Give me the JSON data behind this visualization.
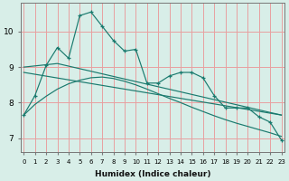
{
  "xlabel": "Humidex (Indice chaleur)",
  "bg_color": "#d8eee8",
  "grid_color": "#e8a0a0",
  "line_color": "#1a7a6e",
  "x_ticks": [
    0,
    1,
    2,
    3,
    4,
    5,
    6,
    7,
    8,
    9,
    10,
    11,
    12,
    13,
    14,
    15,
    16,
    17,
    18,
    19,
    20,
    21,
    22,
    23
  ],
  "y_ticks": [
    7,
    8,
    9,
    10
  ],
  "ylim": [
    6.6,
    10.8
  ],
  "xlim": [
    -0.3,
    23.3
  ],
  "main_x": [
    0,
    1,
    2,
    3,
    4,
    5,
    6,
    7,
    8,
    9,
    10,
    11,
    12,
    13,
    14,
    15,
    16,
    17,
    18,
    19,
    20,
    21,
    22,
    23
  ],
  "main_y": [
    7.65,
    8.2,
    9.05,
    9.55,
    9.25,
    10.45,
    10.55,
    10.15,
    9.75,
    9.45,
    9.5,
    8.55,
    8.55,
    8.75,
    8.85,
    8.85,
    8.7,
    8.2,
    7.85,
    7.85,
    7.85,
    7.6,
    7.45,
    6.95
  ],
  "line2_x": [
    0,
    3,
    23
  ],
  "line2_y": [
    9.0,
    9.1,
    7.65
  ],
  "line3_x": [
    0,
    23
  ],
  "line3_y": [
    8.85,
    7.65
  ],
  "smooth_x": [
    0,
    1,
    2,
    3,
    4,
    5,
    6,
    7,
    8,
    9,
    10,
    11,
    12,
    13,
    14,
    15,
    16,
    17,
    18,
    19,
    20,
    21,
    22,
    23
  ],
  "smooth_y": [
    7.65,
    7.95,
    8.18,
    8.38,
    8.53,
    8.63,
    8.7,
    8.72,
    8.68,
    8.6,
    8.5,
    8.38,
    8.25,
    8.12,
    8.0,
    7.87,
    7.75,
    7.63,
    7.52,
    7.42,
    7.33,
    7.24,
    7.15,
    7.05
  ]
}
